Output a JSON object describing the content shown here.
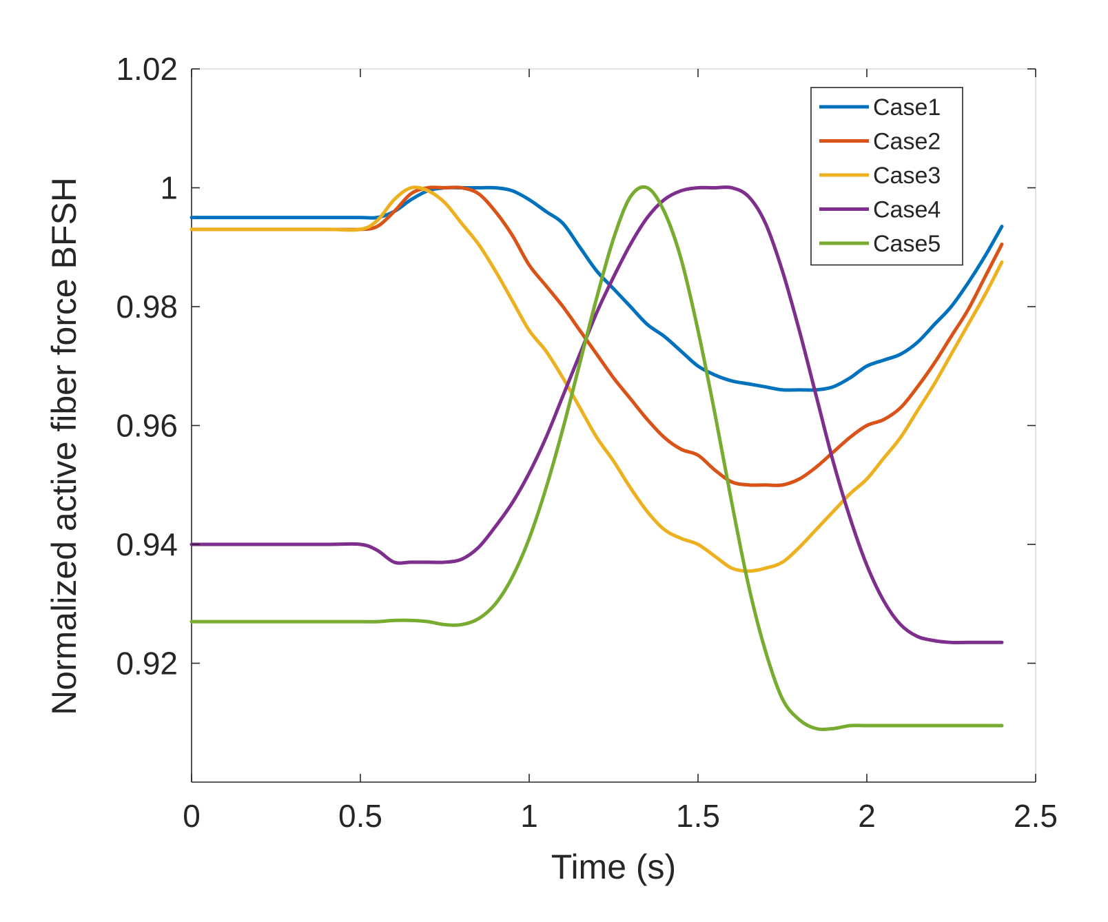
{
  "chart_data": {
    "type": "line",
    "title": "",
    "xlabel": "Time (s)",
    "ylabel": "Normalized active fiber force  BFSH",
    "xlim": [
      0,
      2.5
    ],
    "ylim": [
      0.9,
      1.02
    ],
    "xticks": [
      0,
      0.5,
      1,
      1.5,
      2,
      2.5
    ],
    "xtick_labels": [
      "0",
      "0.5",
      "1",
      "1.5",
      "2",
      "2.5"
    ],
    "yticks": [
      0.92,
      0.94,
      0.96,
      0.98,
      1,
      1.02
    ],
    "ytick_labels": [
      "0.92",
      "0.94",
      "0.96",
      "0.98",
      "1",
      "1.02"
    ],
    "grid": false,
    "legend_position": "top-right",
    "series": [
      {
        "name": "Case1",
        "color": "#0072BD",
        "x": [
          0,
          0.2,
          0.4,
          0.5,
          0.55,
          0.6,
          0.65,
          0.7,
          0.75,
          0.8,
          0.85,
          0.9,
          0.95,
          1.0,
          1.05,
          1.1,
          1.15,
          1.2,
          1.25,
          1.3,
          1.35,
          1.4,
          1.45,
          1.5,
          1.55,
          1.6,
          1.65,
          1.7,
          1.75,
          1.8,
          1.85,
          1.9,
          1.95,
          2.0,
          2.05,
          2.1,
          2.15,
          2.2,
          2.25,
          2.3,
          2.35,
          2.4
        ],
        "y": [
          0.995,
          0.995,
          0.995,
          0.995,
          0.995,
          0.996,
          0.998,
          0.9995,
          1.0,
          1.0,
          1.0,
          1.0,
          0.9995,
          0.998,
          0.996,
          0.994,
          0.99,
          0.986,
          0.983,
          0.98,
          0.977,
          0.975,
          0.9725,
          0.97,
          0.9685,
          0.9675,
          0.967,
          0.9665,
          0.966,
          0.966,
          0.966,
          0.9665,
          0.968,
          0.97,
          0.971,
          0.972,
          0.974,
          0.977,
          0.98,
          0.984,
          0.9885,
          0.9935
        ]
      },
      {
        "name": "Case2",
        "color": "#D95319",
        "x": [
          0,
          0.2,
          0.4,
          0.5,
          0.55,
          0.6,
          0.65,
          0.7,
          0.75,
          0.8,
          0.85,
          0.9,
          0.95,
          1.0,
          1.05,
          1.1,
          1.15,
          1.2,
          1.25,
          1.3,
          1.35,
          1.4,
          1.45,
          1.5,
          1.55,
          1.6,
          1.65,
          1.7,
          1.75,
          1.8,
          1.85,
          1.9,
          1.95,
          2.0,
          2.05,
          2.1,
          2.15,
          2.2,
          2.25,
          2.3,
          2.35,
          2.4
        ],
        "y": [
          0.993,
          0.993,
          0.993,
          0.993,
          0.9935,
          0.996,
          0.999,
          1.0,
          1.0,
          1.0,
          0.999,
          0.996,
          0.992,
          0.987,
          0.9835,
          0.98,
          0.976,
          0.972,
          0.968,
          0.9645,
          0.961,
          0.958,
          0.956,
          0.955,
          0.9525,
          0.9505,
          0.95,
          0.95,
          0.95,
          0.951,
          0.953,
          0.9555,
          0.958,
          0.96,
          0.961,
          0.963,
          0.9665,
          0.9705,
          0.975,
          0.9795,
          0.985,
          0.9905
        ]
      },
      {
        "name": "Case3",
        "color": "#EDB120",
        "x": [
          0,
          0.2,
          0.4,
          0.5,
          0.55,
          0.6,
          0.65,
          0.7,
          0.75,
          0.8,
          0.85,
          0.9,
          0.95,
          1.0,
          1.05,
          1.1,
          1.15,
          1.2,
          1.25,
          1.3,
          1.35,
          1.4,
          1.45,
          1.5,
          1.55,
          1.6,
          1.65,
          1.7,
          1.75,
          1.8,
          1.85,
          1.9,
          1.95,
          2.0,
          2.05,
          2.1,
          2.15,
          2.2,
          2.25,
          2.3,
          2.35,
          2.4
        ],
        "y": [
          0.993,
          0.993,
          0.993,
          0.993,
          0.9945,
          0.998,
          1.0,
          0.9995,
          0.9975,
          0.994,
          0.9905,
          0.986,
          0.981,
          0.976,
          0.9725,
          0.968,
          0.963,
          0.958,
          0.954,
          0.9495,
          0.9455,
          0.9425,
          0.941,
          0.94,
          0.938,
          0.936,
          0.9355,
          0.936,
          0.937,
          0.9395,
          0.9425,
          0.9455,
          0.9485,
          0.951,
          0.9545,
          0.958,
          0.9625,
          0.967,
          0.972,
          0.977,
          0.982,
          0.9875
        ]
      },
      {
        "name": "Case4",
        "color": "#7E2F8E",
        "x": [
          0,
          0.2,
          0.4,
          0.5,
          0.55,
          0.6,
          0.65,
          0.7,
          0.75,
          0.8,
          0.85,
          0.9,
          0.95,
          1.0,
          1.05,
          1.1,
          1.15,
          1.2,
          1.25,
          1.3,
          1.35,
          1.4,
          1.45,
          1.5,
          1.55,
          1.6,
          1.65,
          1.7,
          1.75,
          1.8,
          1.85,
          1.9,
          1.95,
          2.0,
          2.05,
          2.1,
          2.15,
          2.2,
          2.25,
          2.3,
          2.35,
          2.4
        ],
        "y": [
          0.94,
          0.94,
          0.94,
          0.94,
          0.939,
          0.937,
          0.937,
          0.937,
          0.937,
          0.9375,
          0.9395,
          0.943,
          0.947,
          0.952,
          0.958,
          0.965,
          0.972,
          0.979,
          0.985,
          0.9905,
          0.995,
          0.998,
          0.9995,
          1.0,
          1.0,
          1.0,
          0.9985,
          0.994,
          0.986,
          0.976,
          0.965,
          0.954,
          0.9445,
          0.9365,
          0.9305,
          0.9265,
          0.9245,
          0.9238,
          0.9235,
          0.9235,
          0.9235,
          0.9235
        ]
      },
      {
        "name": "Case5",
        "color": "#77AC30",
        "x": [
          0,
          0.2,
          0.4,
          0.5,
          0.55,
          0.6,
          0.65,
          0.7,
          0.75,
          0.8,
          0.85,
          0.9,
          0.95,
          1.0,
          1.05,
          1.1,
          1.15,
          1.2,
          1.25,
          1.3,
          1.35,
          1.4,
          1.45,
          1.5,
          1.55,
          1.6,
          1.65,
          1.7,
          1.75,
          1.8,
          1.85,
          1.9,
          1.95,
          2.0,
          2.05,
          2.1,
          2.15,
          2.2,
          2.25,
          2.3,
          2.35,
          2.4
        ],
        "y": [
          0.927,
          0.927,
          0.927,
          0.927,
          0.927,
          0.9272,
          0.9272,
          0.927,
          0.9265,
          0.9265,
          0.9275,
          0.93,
          0.9345,
          0.941,
          0.9495,
          0.9595,
          0.9705,
          0.9815,
          0.9915,
          0.9985,
          1.0,
          0.996,
          0.988,
          0.976,
          0.962,
          0.947,
          0.933,
          0.922,
          0.914,
          0.9105,
          0.909,
          0.909,
          0.9095,
          0.9095,
          0.9095,
          0.9095,
          0.9095,
          0.9095,
          0.9095,
          0.9095,
          0.9095,
          0.9095
        ]
      }
    ]
  }
}
